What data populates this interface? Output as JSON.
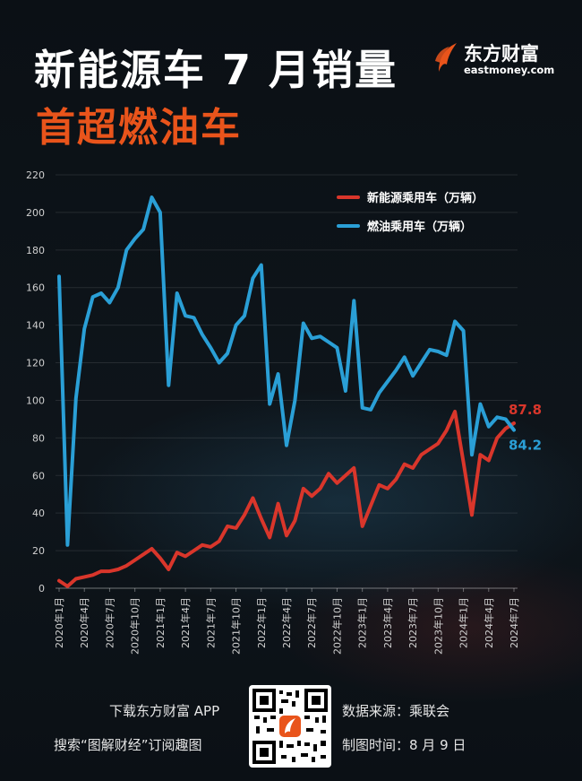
{
  "header": {
    "title": "新能源车 7 月销量",
    "subtitle": "首超燃油车"
  },
  "logo": {
    "name_cn": "东方财富",
    "name_en": "eastmoney.com"
  },
  "colors": {
    "nev": "#d9362b",
    "fuel": "#2a9fd6",
    "title": "#ffffff",
    "subtitle": "#e9541b",
    "background": "#0c1116"
  },
  "chart_data": {
    "type": "line",
    "title": "新能源车 7 月销量 首超燃油车",
    "ylim": [
      0,
      220
    ],
    "yticks": [
      0,
      20,
      40,
      60,
      80,
      100,
      120,
      140,
      160,
      180,
      200,
      220
    ],
    "grid": true,
    "legend_position": "top-right",
    "x": [
      "2020年1月",
      "2020年2月",
      "2020年3月",
      "2020年4月",
      "2020年5月",
      "2020年6月",
      "2020年7月",
      "2020年8月",
      "2020年9月",
      "2020年10月",
      "2020年11月",
      "2020年12月",
      "2021年1月",
      "2021年2月",
      "2021年3月",
      "2021年4月",
      "2021年5月",
      "2021年6月",
      "2021年7月",
      "2021年8月",
      "2021年9月",
      "2021年10月",
      "2021年11月",
      "2021年12月",
      "2022年1月",
      "2022年2月",
      "2022年3月",
      "2022年4月",
      "2022年5月",
      "2022年6月",
      "2022年7月",
      "2022年8月",
      "2022年9月",
      "2022年10月",
      "2022年11月",
      "2022年12月",
      "2023年1月",
      "2023年2月",
      "2023年3月",
      "2023年4月",
      "2023年5月",
      "2023年6月",
      "2023年7月",
      "2023年8月",
      "2023年9月",
      "2023年10月",
      "2023年11月",
      "2023年12月",
      "2024年1月",
      "2024年2月",
      "2024年3月",
      "2024年4月",
      "2024年5月",
      "2024年6月",
      "2024年7月"
    ],
    "xtick_labels": [
      "2020年1月",
      "2020年4月",
      "2020年7月",
      "2020年10月",
      "2021年1月",
      "2021年4月",
      "2021年7月",
      "2021年10月",
      "2022年1月",
      "2022年4月",
      "2022年7月",
      "2022年10月",
      "2023年1月",
      "2023年4月",
      "2023年7月",
      "2023年10月",
      "2024年1月",
      "2024年4月",
      "2024年7月"
    ],
    "series": [
      {
        "name": "新能源乘用车（万辆）",
        "color": "#d9362b",
        "values": [
          4,
          1,
          5,
          6,
          7,
          9,
          9,
          10,
          12,
          15,
          18,
          21,
          16,
          10,
          19,
          17,
          20,
          23,
          22,
          25,
          33,
          32,
          39,
          48,
          37,
          27,
          45,
          28,
          36,
          53,
          49,
          53,
          61,
          56,
          60,
          64,
          33,
          44,
          55,
          53,
          58,
          66,
          64,
          71,
          74,
          77,
          84,
          94,
          67,
          39,
          71,
          68,
          80,
          85,
          87.8
        ]
      },
      {
        "name": "燃油乘用车（万辆）",
        "color": "#2a9fd6",
        "values": [
          166,
          23,
          101,
          138,
          155,
          157,
          152,
          160,
          180,
          186,
          191,
          208,
          200,
          108,
          157,
          145,
          144,
          135,
          128,
          120,
          125,
          140,
          145,
          165,
          172,
          98,
          114,
          76,
          100,
          141,
          133,
          134,
          131,
          128,
          105,
          153,
          96,
          95,
          104,
          110,
          116,
          123,
          113,
          120,
          127,
          126,
          124,
          142,
          137,
          71,
          98,
          86,
          91,
          90,
          84.2
        ]
      }
    ],
    "annotations": [
      {
        "text": "87.8",
        "series": "新能源乘用车（万辆）",
        "color": "#d9362b"
      },
      {
        "text": "84.2",
        "series": "燃油乘用车（万辆）",
        "color": "#2a9fd6"
      }
    ]
  },
  "footer": {
    "download_text": "下载东方财富 APP",
    "search_text": "搜索“图解财经”订阅趣图",
    "source_text": "数据来源：乘联会",
    "date_text": "制图时间：8 月 9 日"
  }
}
